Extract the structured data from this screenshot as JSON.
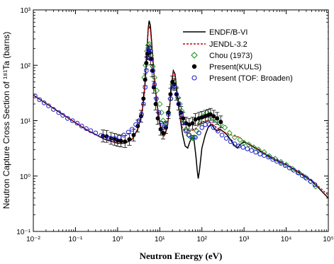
{
  "chart_data": {
    "type": "line",
    "xlabel": "Neutron Energy (eV)",
    "ylabel": "Neutron Capture Cross Section of ¹⁸¹Ta (barns)",
    "xscale": "log",
    "yscale": "log",
    "xlim": [
      0.01,
      100000
    ],
    "ylim": [
      0.1,
      1000
    ],
    "x_tick_labels": [
      "10⁻²",
      "10⁻¹",
      "10⁰",
      "10¹",
      "10²",
      "10³",
      "10⁴",
      "10⁵"
    ],
    "y_tick_labels": [
      "10⁻¹",
      "10⁰",
      "10¹",
      "10²",
      "10³"
    ],
    "legend_position": "top-right",
    "grid": false,
    "series": [
      {
        "name": "ENDF/B-VI",
        "style": "solid-line",
        "color": "#000000",
        "points": [
          [
            0.01,
            29
          ],
          [
            0.02,
            20.5
          ],
          [
            0.05,
            13
          ],
          [
            0.1,
            9.2
          ],
          [
            0.2,
            6.6
          ],
          [
            0.5,
            4.6
          ],
          [
            1.0,
            3.9
          ],
          [
            1.5,
            3.9
          ],
          [
            2.2,
            4.6
          ],
          [
            3.0,
            7
          ],
          [
            3.8,
            14
          ],
          [
            4.4,
            40
          ],
          [
            4.9,
            150
          ],
          [
            5.3,
            450
          ],
          [
            5.6,
            640
          ],
          [
            6.0,
            520
          ],
          [
            6.6,
            200
          ],
          [
            7.4,
            60
          ],
          [
            8.5,
            22
          ],
          [
            10,
            9
          ],
          [
            11.5,
            5.8
          ],
          [
            13,
            5.5
          ],
          [
            15,
            7.5
          ],
          [
            17,
            16
          ],
          [
            19,
            45
          ],
          [
            21,
            80
          ],
          [
            23,
            70
          ],
          [
            26,
            30
          ],
          [
            30,
            12
          ],
          [
            35,
            5.5
          ],
          [
            40,
            3.5
          ],
          [
            46,
            3.2
          ],
          [
            52,
            4.2
          ],
          [
            58,
            5
          ],
          [
            65,
            4.5
          ],
          [
            72,
            2.3
          ],
          [
            78,
            1.2
          ],
          [
            82,
            0.9
          ],
          [
            88,
            1.3
          ],
          [
            100,
            3.2
          ],
          [
            120,
            5.5
          ],
          [
            140,
            7.5
          ],
          [
            160,
            8.5
          ],
          [
            180,
            8.2
          ],
          [
            200,
            7
          ],
          [
            230,
            6.5
          ],
          [
            270,
            7
          ],
          [
            320,
            6.4
          ],
          [
            400,
            5.5
          ],
          [
            500,
            4.3
          ],
          [
            600,
            3.5
          ],
          [
            700,
            3.2
          ],
          [
            800,
            3.7
          ],
          [
            1000,
            4.1
          ],
          [
            1200,
            3.9
          ],
          [
            1500,
            3.5
          ],
          [
            2000,
            3.1
          ],
          [
            3000,
            2.55
          ],
          [
            5000,
            2.0
          ],
          [
            10000,
            1.6
          ],
          [
            20000,
            1.15
          ],
          [
            40000,
            0.82
          ],
          [
            60000,
            0.6
          ],
          [
            100000,
            0.4
          ]
        ]
      },
      {
        "name": "JENDL-3.2",
        "style": "dashed-line",
        "color": "#cc0000",
        "points": [
          [
            0.01,
            29
          ],
          [
            0.02,
            20.5
          ],
          [
            0.05,
            13
          ],
          [
            0.1,
            9.2
          ],
          [
            0.2,
            6.6
          ],
          [
            0.5,
            4.6
          ],
          [
            1.0,
            3.9
          ],
          [
            1.5,
            3.9
          ],
          [
            2.2,
            4.6
          ],
          [
            3.0,
            7
          ],
          [
            3.8,
            14
          ],
          [
            4.4,
            40
          ],
          [
            4.9,
            150
          ],
          [
            5.3,
            420
          ],
          [
            5.6,
            520
          ],
          [
            6.0,
            420
          ],
          [
            6.6,
            180
          ],
          [
            7.4,
            55
          ],
          [
            8.5,
            21
          ],
          [
            10,
            8.5
          ],
          [
            11.5,
            5.5
          ],
          [
            13,
            5.2
          ],
          [
            15,
            7.5
          ],
          [
            17,
            16
          ],
          [
            19,
            45
          ],
          [
            21,
            78
          ],
          [
            23,
            65
          ],
          [
            26,
            28
          ],
          [
            30,
            12
          ],
          [
            35,
            7
          ],
          [
            45,
            6
          ],
          [
            55,
            6.5
          ],
          [
            65,
            6.8
          ],
          [
            75,
            7.5
          ],
          [
            85,
            8.5
          ],
          [
            100,
            9.5
          ],
          [
            130,
            10
          ],
          [
            160,
            9.2
          ],
          [
            200,
            8
          ],
          [
            300,
            6.5
          ],
          [
            500,
            5.5
          ],
          [
            800,
            5
          ],
          [
            1000,
            4.2
          ],
          [
            2000,
            3.2
          ],
          [
            5000,
            2.1
          ],
          [
            10000,
            1.6
          ],
          [
            20000,
            1.2
          ],
          [
            40000,
            0.85
          ],
          [
            100000,
            0.45
          ]
        ]
      },
      {
        "name": "Chou (1973)",
        "style": "open-diamond",
        "color": "#2a9a2a",
        "points": [
          [
            4.3,
            60
          ],
          [
            4.6,
            100
          ],
          [
            5.0,
            180
          ],
          [
            5.3,
            230
          ],
          [
            5.6,
            240
          ],
          [
            5.9,
            200
          ],
          [
            6.2,
            150
          ],
          [
            6.8,
            95
          ],
          [
            7.5,
            60
          ],
          [
            8.5,
            35
          ],
          [
            10,
            20
          ],
          [
            11,
            14
          ],
          [
            12,
            10
          ],
          [
            14,
            9
          ],
          [
            16,
            14
          ],
          [
            18,
            25
          ],
          [
            20,
            45
          ],
          [
            22,
            50
          ],
          [
            24,
            40
          ],
          [
            27,
            26
          ],
          [
            30,
            20
          ],
          [
            33,
            15
          ],
          [
            37,
            10
          ],
          [
            42,
            7
          ],
          [
            48,
            5.5
          ],
          [
            55,
            5
          ],
          [
            60,
            4.8
          ],
          [
            65,
            5
          ],
          [
            75,
            6.5
          ],
          [
            90,
            9
          ],
          [
            110,
            12
          ],
          [
            130,
            14
          ],
          [
            160,
            12
          ],
          [
            190,
            11
          ],
          [
            230,
            10
          ],
          [
            280,
            8.5
          ],
          [
            350,
            7.5
          ],
          [
            450,
            6
          ],
          [
            600,
            5
          ],
          [
            800,
            4.5
          ],
          [
            1000,
            4
          ],
          [
            1300,
            3.7
          ],
          [
            1700,
            3.3
          ],
          [
            2200,
            3
          ],
          [
            3000,
            2.7
          ],
          [
            4000,
            2.3
          ],
          [
            5500,
            2.05
          ],
          [
            7500,
            1.8
          ],
          [
            10000,
            1.6
          ],
          [
            14000,
            1.35
          ],
          [
            20000,
            1.15
          ],
          [
            28000,
            0.95
          ],
          [
            38000,
            0.8
          ],
          [
            50000,
            0.65
          ]
        ]
      },
      {
        "name": "Present(KULS)",
        "style": "filled-circle-with-errorbars",
        "color": "#000000",
        "points": [
          [
            0.45,
            5.3
          ],
          [
            0.55,
            5.2
          ],
          [
            0.7,
            4.8
          ],
          [
            0.85,
            4.6
          ],
          [
            1.0,
            4.4
          ],
          [
            1.2,
            4.3
          ],
          [
            1.5,
            4.2
          ],
          [
            1.9,
            4.6
          ],
          [
            2.4,
            5.5
          ],
          [
            3.0,
            8
          ],
          [
            3.6,
            12
          ],
          [
            4.1,
            25
          ],
          [
            4.5,
            55
          ],
          [
            4.8,
            110
          ],
          [
            5.1,
            160
          ],
          [
            5.4,
            180
          ],
          [
            5.7,
            170
          ],
          [
            6.1,
            130
          ],
          [
            6.6,
            80
          ],
          [
            7.2,
            40
          ],
          [
            8.0,
            20
          ],
          [
            9,
            11
          ],
          [
            10.5,
            7
          ],
          [
            12,
            6
          ],
          [
            14,
            7.5
          ],
          [
            16,
            14
          ],
          [
            18,
            30
          ],
          [
            20,
            50
          ],
          [
            22,
            45
          ],
          [
            25,
            30
          ],
          [
            28,
            20
          ],
          [
            32,
            14
          ],
          [
            36,
            11
          ],
          [
            42,
            9
          ],
          [
            50,
            8.5
          ],
          [
            60,
            9
          ],
          [
            70,
            10.5
          ],
          [
            85,
            11
          ],
          [
            100,
            11.5
          ],
          [
            120,
            12
          ],
          [
            140,
            12.5
          ],
          [
            160,
            13
          ],
          [
            190,
            12
          ],
          [
            230,
            11
          ],
          [
            280,
            9.5
          ]
        ]
      },
      {
        "name": "Present (TOF: Broaden)",
        "style": "open-circle",
        "color": "#2020cc",
        "points": [
          [
            0.011,
            28
          ],
          [
            0.014,
            24
          ],
          [
            0.018,
            21
          ],
          [
            0.023,
            18.5
          ],
          [
            0.03,
            16
          ],
          [
            0.04,
            14
          ],
          [
            0.05,
            12.5
          ],
          [
            0.065,
            11
          ],
          [
            0.085,
            10
          ],
          [
            0.11,
            9
          ],
          [
            0.14,
            8
          ],
          [
            0.18,
            7.2
          ],
          [
            0.23,
            6.6
          ],
          [
            0.3,
            6
          ],
          [
            0.4,
            5.4
          ],
          [
            0.5,
            5
          ],
          [
            0.65,
            4.8
          ],
          [
            0.85,
            4.8
          ],
          [
            1.1,
            5
          ],
          [
            1.4,
            5.5
          ],
          [
            1.8,
            6.2
          ],
          [
            2.2,
            7
          ],
          [
            2.7,
            8.5
          ],
          [
            3.2,
            10
          ],
          [
            3.7,
            13
          ],
          [
            4.1,
            20
          ],
          [
            4.5,
            40
          ],
          [
            4.8,
            80
          ],
          [
            5.1,
            140
          ],
          [
            5.4,
            190
          ],
          [
            5.7,
            200
          ],
          [
            6.0,
            180
          ],
          [
            6.4,
            130
          ],
          [
            6.9,
            80
          ],
          [
            7.5,
            45
          ],
          [
            8.3,
            25
          ],
          [
            9.5,
            14
          ],
          [
            11,
            9
          ],
          [
            12.5,
            7.5
          ],
          [
            14,
            8.5
          ],
          [
            16,
            13
          ],
          [
            18,
            25
          ],
          [
            20,
            40
          ],
          [
            22,
            42
          ],
          [
            25,
            30
          ],
          [
            28,
            20
          ],
          [
            32,
            13
          ],
          [
            36,
            9
          ],
          [
            42,
            6.5
          ],
          [
            50,
            5.5
          ],
          [
            60,
            5
          ],
          [
            70,
            5
          ],
          [
            85,
            6
          ],
          [
            100,
            7.5
          ],
          [
            120,
            8.5
          ],
          [
            150,
            8.5
          ],
          [
            190,
            7.5
          ],
          [
            240,
            6.5
          ],
          [
            300,
            5.5
          ],
          [
            380,
            4.8
          ],
          [
            480,
            4.2
          ],
          [
            600,
            3.8
          ],
          [
            750,
            3.5
          ],
          [
            950,
            3.3
          ],
          [
            1200,
            3.1
          ],
          [
            1500,
            2.9
          ],
          [
            1900,
            2.7
          ],
          [
            2400,
            2.5
          ],
          [
            3000,
            2.35
          ],
          [
            3800,
            2.2
          ],
          [
            4800,
            2.0
          ],
          [
            6000,
            1.85
          ],
          [
            7500,
            1.7
          ],
          [
            9500,
            1.55
          ],
          [
            12000,
            1.4
          ],
          [
            15000,
            1.28
          ],
          [
            19000,
            1.15
          ],
          [
            24000,
            1.02
          ],
          [
            30000,
            0.92
          ],
          [
            38000,
            0.8
          ],
          [
            48000,
            0.7
          ]
        ]
      }
    ]
  }
}
